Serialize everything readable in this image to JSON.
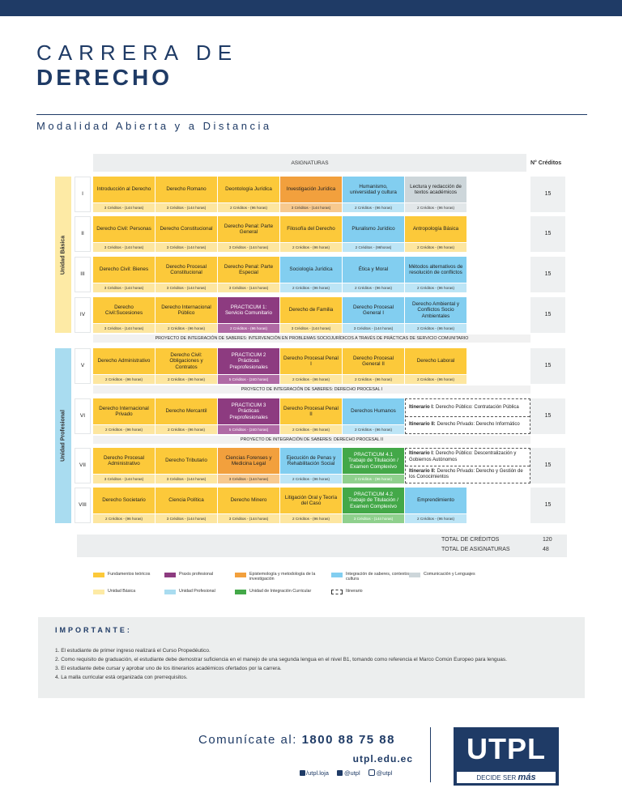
{
  "header": {
    "title_line1": "CARRERA DE",
    "title_line2": "DERECHO",
    "subtitle": "Modalidad Abierta y a Distancia"
  },
  "table": {
    "subjects_heading": "ASIGNATURAS",
    "credits_heading": "N° Créditos",
    "units": [
      {
        "name": "Unidad Básica",
        "category": 5
      },
      {
        "name": "Unidad Profesional",
        "category": 6
      }
    ],
    "rows": [
      {
        "level": "I",
        "credits": 15,
        "cells": [
          {
            "name": "Introducción al Derecho",
            "hours": "3 Créditos - (144 horas)",
            "category": 0
          },
          {
            "name": "Derecho Romano",
            "hours": "3 Créditos - (144 horas)",
            "category": 0
          },
          {
            "name": "Deontología Jurídica",
            "hours": "2 Créditos - (96 horas)",
            "category": 0
          },
          {
            "name": "Investigación Jurídica",
            "hours": "3 Créditos - (144 horas)",
            "category": 2
          },
          {
            "name": "Humanismo, universidad y cultura",
            "hours": "2 Créditos - (96 horas)",
            "category": 3
          },
          {
            "name": "Lectura y redacción de textos académicos",
            "hours": "2 Créditos - (96 horas)",
            "category": 4
          }
        ]
      },
      {
        "level": "II",
        "credits": 15,
        "cells": [
          {
            "name": "Derecho Civil: Personas",
            "hours": "3 Créditos - (144 horas)",
            "category": 0
          },
          {
            "name": "Derecho Constitucional",
            "hours": "3 Créditos - (144 horas)",
            "category": 0
          },
          {
            "name": "Derecho Penal: Parte General",
            "hours": "3 Créditos - (144 horas)",
            "category": 0
          },
          {
            "name": "Filosofía del Derecho",
            "hours": "2 Créditos - (96 horas)",
            "category": 0
          },
          {
            "name": "Pluralismo Jurídico",
            "hours": "2 Créditos - (96horas)",
            "category": 3
          },
          {
            "name": "Antropología Básica",
            "hours": "2 Créditos - (96 horas)",
            "category": 0
          }
        ]
      },
      {
        "level": "III",
        "credits": 15,
        "cells": [
          {
            "name": "Derecho Civil: Bienes",
            "hours": "3 Créditos - (144 horas)",
            "category": 0
          },
          {
            "name": "Derecho Procesal Constitucional",
            "hours": "3 Créditos - (144 horas)",
            "category": 0
          },
          {
            "name": "Derecho Penal: Parte Especial",
            "hours": "3 Créditos - (144 horas)",
            "category": 0
          },
          {
            "name": "Sociología Jurídica",
            "hours": "2 Créditos - (96 horas)",
            "category": 3
          },
          {
            "name": "Ética y Moral",
            "hours": "2 Créditos - (96 horas)",
            "category": 3
          },
          {
            "name": "Métodos alternativos de resolución de conflictos",
            "hours": "2 Créditos - (96 horas)",
            "category": 3
          }
        ]
      },
      {
        "level": "IV",
        "credits": 15,
        "cells": [
          {
            "name": "Derecho Civil:Sucesiones",
            "hours": "3 Créditos - (144 horas)",
            "category": 0
          },
          {
            "name": "Derecho Internacional Público",
            "hours": "2 Créditos - (96 horas)",
            "category": 0
          },
          {
            "name": "PRACTICUM 1: Servicio Comunitario",
            "hours": "2 Créditos - (96 horas)",
            "category": 1
          },
          {
            "name": "Derecho de Familia",
            "hours": "3 Créditos - (144 horas)",
            "category": 0
          },
          {
            "name": "Derecho Procesal General I",
            "hours": "3 Créditos - (144 horas)",
            "category": 3
          },
          {
            "name": "Derecho Ambiental y Conflictos Socio Ambientales",
            "hours": "2 Créditos - (96 horas)",
            "category": 3
          }
        ],
        "project": "PROYECTO DE INTEGRACIÓN DE SABERES: INTERVENCIÓN EN PROBLEMAS SOCIOJURÍDICOS A TRAVÉS DE PRÁCTICAS DE SERVICIO COMUNITARIO"
      },
      {
        "level": "V",
        "credits": 15,
        "cells": [
          {
            "name": "Derecho Administrativo",
            "hours": "2 Créditos - (96 horas)",
            "category": 0
          },
          {
            "name": "Derecho Civil: Obligaciones y Contratos",
            "hours": "2 Créditos - (96 horas)",
            "category": 0
          },
          {
            "name": "PRACTICUM 2 Prácticas Preprofesionales",
            "hours": "5 Créditos - (240 horas)",
            "category": 1
          },
          {
            "name": "Derecho Procesal Penal I",
            "hours": "2 Créditos - (96 horas)",
            "category": 0
          },
          {
            "name": "Derecho Procesal General II",
            "hours": "2 Créditos - (96 horas)",
            "category": 0
          },
          {
            "name": "Derecho Laboral",
            "hours": "2 Créditos - (96 horas)",
            "category": 0
          }
        ],
        "project": "PROYECTO DE INTEGRACIÓN DE SABERES: DERECHO PROCESAL I"
      },
      {
        "level": "VI",
        "credits": 15,
        "cells": [
          {
            "name": "Derecho Internacional Privado",
            "hours": "2 Créditos - (96 horas)",
            "category": 0
          },
          {
            "name": "Derecho Mercantil",
            "hours": "2 Créditos - (96 horas)",
            "category": 0
          },
          {
            "name": "PRACTICUM 3 Prácticas Preprofesionales",
            "hours": "5 Créditos - (240 horas)",
            "category": 1
          },
          {
            "name": "Derecho Procesal Penal II",
            "hours": "2 Créditos - (96 horas)",
            "category": 0
          },
          {
            "name": "Derechos Humanos",
            "hours": "2 Créditos - (96 horas)",
            "category": 3
          }
        ],
        "itineraries": [
          {
            "label": "Itinerario I:",
            "text": "Derecho Público: Contratación Pública"
          },
          {
            "label": "Itinerario II:",
            "text": "Derecho Privado: Derecho Informático"
          }
        ],
        "project": "PROYECTO DE INTEGRACIÓN DE SABERES: DERECHO PROCESAL II"
      },
      {
        "level": "VII",
        "credits": 15,
        "cells": [
          {
            "name": "Derecho Procesal Administrativo",
            "hours": "3 Créditos - (144 horas)",
            "category": 0
          },
          {
            "name": "Derecho Tributario",
            "hours": "3 Créditos - (144 horas)",
            "category": 0
          },
          {
            "name": "Ciencias Forenses y Medicina Legal",
            "hours": "3 Créditos - (144 horas)",
            "category": 2
          },
          {
            "name": "Ejecución de Penas y Rehabilitación Social",
            "hours": "2 Créditos - (96 horas)",
            "category": 3
          },
          {
            "name": "PRACTICUM 4.1 Trabajo de Titulación / Examen Complexivo",
            "hours": "2 Créditos - (96 horas)",
            "category": 7
          }
        ],
        "itineraries": [
          {
            "label": "Itinerario I:",
            "text": "Derecho Público: Descentralización y Gobiernos Autónomos"
          },
          {
            "label": "Itinerario II:",
            "text": "Derecho Privado: Derecho y Gestión de los Conocimientos"
          }
        ]
      },
      {
        "level": "VIII",
        "credits": 15,
        "cells": [
          {
            "name": "Derecho Societario",
            "hours": "2 Créditos - (96 horas)",
            "category": 0
          },
          {
            "name": "Ciencia Política",
            "hours": "3 Créditos - (144 horas)",
            "category": 0
          },
          {
            "name": "Derecho Minero",
            "hours": "3 Créditos - (144 horas)",
            "category": 0
          },
          {
            "name": "Litigación Oral y Teoría del Caso",
            "hours": "2 Créditos - (96 horas)",
            "category": 0
          },
          {
            "name": "PRACTICUM 4.2 Trabajo de Titulación / Examen Complexivo",
            "hours": "3 Créditos - (144 horas)",
            "category": 7
          },
          {
            "name": "Emprendimiento",
            "hours": "2 Créditos - (96 horas)",
            "category": 3
          }
        ]
      }
    ],
    "totals": [
      {
        "label": "TOTAL DE CRÉDITOS",
        "value": 120
      },
      {
        "label": "TOTAL DE ASIGNATURAS",
        "value": 48
      }
    ]
  },
  "legend": [
    {
      "label": "Fundamentos teóricos",
      "color": "#fcc93a",
      "light": "#fde6a0"
    },
    {
      "label": "Praxis profesional",
      "color": "#8d3b80",
      "light": "#b06aa5"
    },
    {
      "label": "Epistemología y metodología de la investigación",
      "color": "#f2a03d",
      "light": "#f7c98f"
    },
    {
      "label": "Integración de saberes, contextos y cultura",
      "color": "#82cef0",
      "light": "#bde5f6"
    },
    {
      "label": "Comunicación y Lenguajes",
      "color": "#cdd6da",
      "light": "#e2e7e9"
    },
    {
      "label": "Unidad Básica",
      "color": "#fdeaa5"
    },
    {
      "label": "Unidad Profesional",
      "color": "#a9dcf0"
    },
    {
      "label": "Unidad de Integración Curricular",
      "color": "#43a848",
      "light": "#8fd08d"
    },
    {
      "label": "Itinerario",
      "style": "dashed"
    }
  ],
  "important": {
    "title": "IMPORTANTE:",
    "items": [
      "1. El estudiante de primer ingreso realizará el Curso Propedéutico.",
      "2. Como requisito de graduación, el estudiante debe demostrar suficiencia en el manejo de una segunda lengua en el nivel B1, tomando como referencia el Marco Común Europeo para lenguas.",
      "3. El estudiante debe cursar y aprobar uno de los itinerarios académicos ofertados por la carrera.",
      "4. La malla curricular está organizada con prerrequisitos."
    ]
  },
  "footer": {
    "contact_label": "Comunícate al:",
    "phone": "1800 88 75 88",
    "website": "utpl.edu.ec",
    "facebook": "/utpl.loja",
    "twitter": "@utpl",
    "instagram": "@utpl",
    "logo": "UTPL",
    "slogan": "DECIDE SER",
    "slogan_bold": "más"
  }
}
